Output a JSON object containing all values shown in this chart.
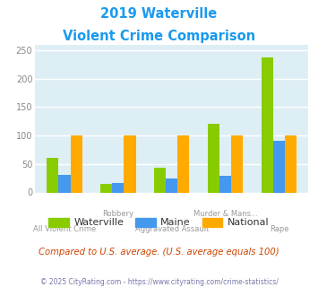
{
  "title_line1": "2019 Waterville",
  "title_line2": "Violent Crime Comparison",
  "title_color": "#1a9aee",
  "categories": [
    "All Violent Crime",
    "Robbery",
    "Aggravated Assault",
    "Murder & Mans...",
    "Rape"
  ],
  "series": {
    "Waterville": {
      "color": "#88cc00",
      "values": [
        60,
        15,
        43,
        121,
        237
      ]
    },
    "Maine": {
      "color": "#4499ee",
      "values": [
        30,
        17,
        25,
        29,
        91
      ]
    },
    "National": {
      "color": "#ffaa00",
      "values": [
        100,
        100,
        100,
        100,
        100
      ]
    }
  },
  "ylim": [
    0,
    260
  ],
  "yticks": [
    0,
    50,
    100,
    150,
    200,
    250
  ],
  "plot_bg_color": "#deeef5",
  "grid_color": "#ffffff",
  "footer_text": "Compared to U.S. average. (U.S. average equals 100)",
  "footer_color": "#cc4400",
  "copyright_text": "© 2025 CityRating.com - https://www.cityrating.com/crime-statistics/",
  "copyright_color": "#7777aa",
  "bar_width": 0.22,
  "xlabel_color": "#999999",
  "ytick_color": "#888888"
}
